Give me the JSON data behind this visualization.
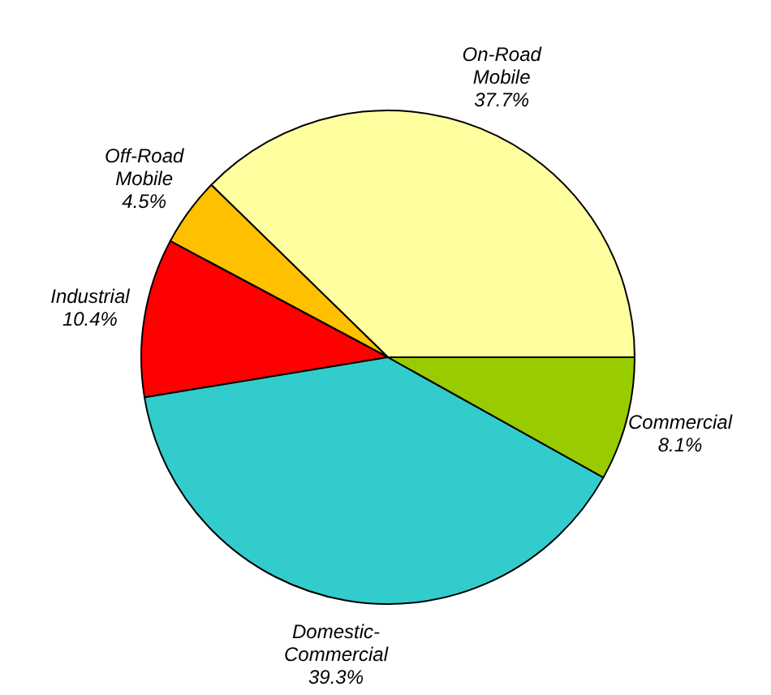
{
  "chart_data": {
    "type": "pie",
    "categories": [
      "On-Road Mobile",
      "Off-Road Mobile",
      "Industrial",
      "Domestic-Commercial",
      "Commercial"
    ],
    "values": [
      37.7,
      4.5,
      10.4,
      39.3,
      8.1
    ],
    "colors": [
      "#ffffa0",
      "#ffc000",
      "#ff0000",
      "#33cccc",
      "#99cc00"
    ],
    "value_labels": [
      "37.7%",
      "4.5%",
      "10.4%",
      "39.3%",
      "8.1%"
    ]
  }
}
